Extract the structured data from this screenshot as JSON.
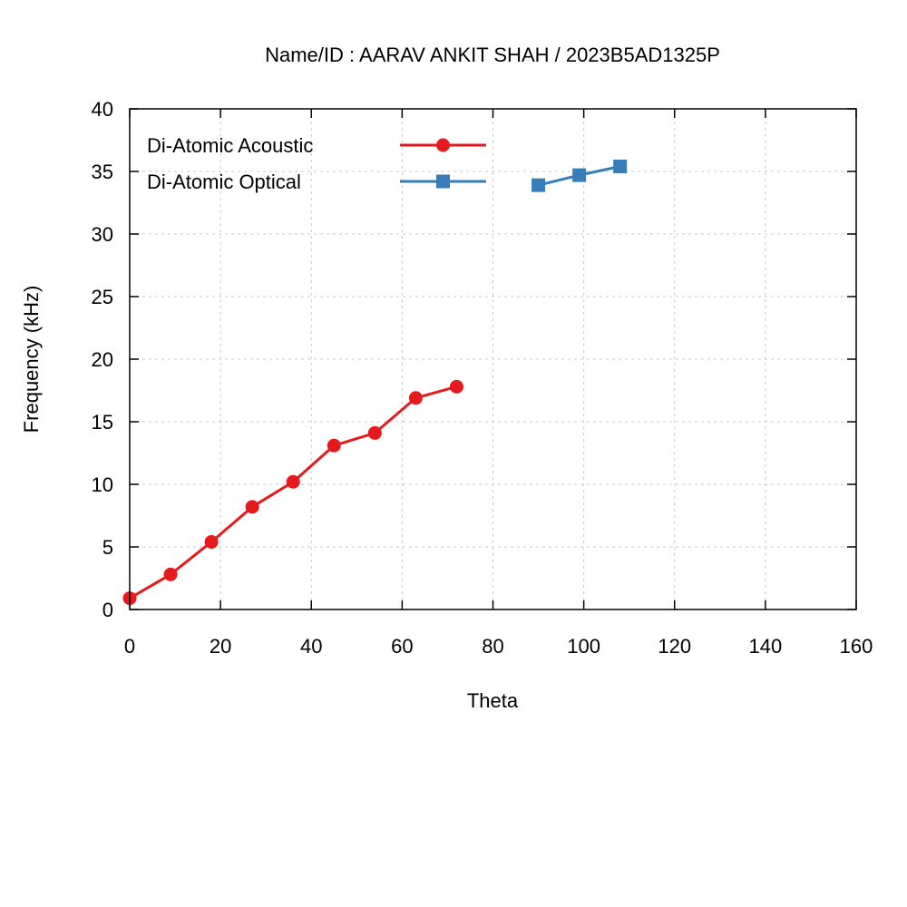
{
  "chart_data": {
    "type": "line",
    "title": "Name/ID : AARAV ANKIT SHAH / 2023B5AD1325P",
    "xlabel": "Theta",
    "ylabel": "Frequency (kHz)",
    "xlim": [
      0,
      160
    ],
    "ylim": [
      0,
      40
    ],
    "xticks": [
      "0",
      "20",
      "40",
      "60",
      "80",
      "100",
      "120",
      "140",
      "160"
    ],
    "yticks": [
      "0",
      "5",
      "10",
      "15",
      "20",
      "25",
      "30",
      "35",
      "40"
    ],
    "grid": true,
    "legend_position": "top-left",
    "series": [
      {
        "name": "Di-Atomic Acoustic",
        "color": "#e41a1c",
        "marker": "circle",
        "x": [
          0,
          9,
          18,
          27,
          36,
          45,
          54,
          63,
          72
        ],
        "y": [
          0.9,
          2.8,
          5.4,
          8.2,
          10.2,
          13.1,
          14.1,
          16.9,
          17.8
        ]
      },
      {
        "name": "Di-Atomic Optical",
        "color": "#377eb8",
        "marker": "square",
        "x": [
          90,
          99,
          108
        ],
        "y": [
          33.9,
          34.7,
          35.4
        ]
      }
    ]
  }
}
